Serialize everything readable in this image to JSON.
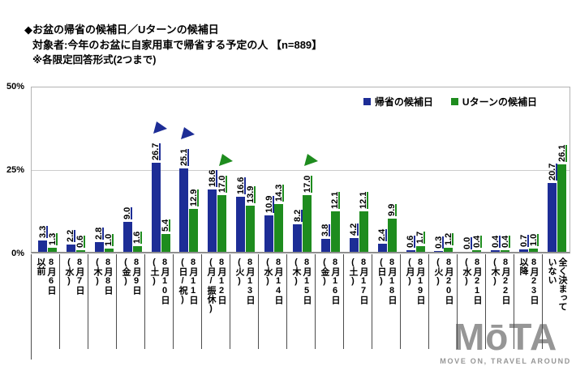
{
  "header": {
    "title": "◆お盆の帰省の候補日／Uターンの候補日",
    "subject": "対象者:今年のお盆に自家用車で帰省する予定の人 【n=889】",
    "note": "※各限定回答形式(2つまで)"
  },
  "chart_data": {
    "type": "bar",
    "title": "お盆の帰省の候補日／Uターンの候補日",
    "ylabel": "%",
    "ylim": [
      0,
      50
    ],
    "y_ticks": [
      "50%",
      "25%",
      "0%"
    ],
    "grid": "horizontal gridline at 25%",
    "legend_position": "top-right",
    "categories": [
      "8月6日以前",
      "8月7日(水)",
      "8月8日(木)",
      "8月9日(金)",
      "8月10日(土)",
      "8月11日(日/祝)",
      "8月12日(月/振休)",
      "8月13日(火)",
      "8月14日(水)",
      "8月15日(木)",
      "8月16日(金)",
      "8月17日(土)",
      "8月18日(日)",
      "8月19日(月)",
      "8月20日(火)",
      "8月21日(水)",
      "8月22日(木)",
      "8月23日以降",
      "全く決まっていない"
    ],
    "category_lines": [
      [
        "8月6日",
        "以前"
      ],
      [
        "8月7日",
        "(水)"
      ],
      [
        "8月8日",
        "(木)"
      ],
      [
        "8月9日",
        "(金)"
      ],
      [
        "8月10日",
        "(土)"
      ],
      [
        "8月11日",
        "(日/祝)"
      ],
      [
        "8月12日",
        "(月/振休)"
      ],
      [
        "8月13日",
        "(火)"
      ],
      [
        "8月14日",
        "(水)"
      ],
      [
        "8月15日",
        "(木)"
      ],
      [
        "8月16日",
        "(金)"
      ],
      [
        "8月17日",
        "(土)"
      ],
      [
        "8月18日",
        "(日)"
      ],
      [
        "8月19日",
        "(月)"
      ],
      [
        "8月20日",
        "(火)"
      ],
      [
        "8月21日",
        "(水)"
      ],
      [
        "8月22日",
        "(木)"
      ],
      [
        "8月23日",
        "以降"
      ],
      [
        "全く決まって",
        "いない"
      ]
    ],
    "series": [
      {
        "name": "帰省の候補日",
        "color": "#1d2d96",
        "values": [
          3.3,
          2.2,
          2.8,
          9.0,
          26.7,
          25.1,
          18.6,
          16.6,
          10.9,
          8.2,
          3.8,
          4.2,
          2.4,
          0.6,
          0.3,
          0.0,
          0.4,
          0.7,
          20.7
        ]
      },
      {
        "name": "Uターンの候補日",
        "color": "#1e8c1e",
        "values": [
          1.3,
          0.6,
          1.0,
          1.6,
          5.4,
          12.9,
          17.0,
          13.9,
          14.3,
          17.0,
          12.1,
          12.1,
          9.9,
          1.7,
          1.2,
          0.4,
          0.4,
          1.0,
          26.1
        ]
      }
    ],
    "flag_markers": [
      {
        "series": 0,
        "category_index": 4
      },
      {
        "series": 0,
        "category_index": 5
      },
      {
        "series": 1,
        "category_index": 6
      },
      {
        "series": 1,
        "category_index": 9
      }
    ]
  },
  "watermark": {
    "logo_text": "MōTA",
    "tagline": "MOVE ON, TRAVEL AROUND"
  }
}
